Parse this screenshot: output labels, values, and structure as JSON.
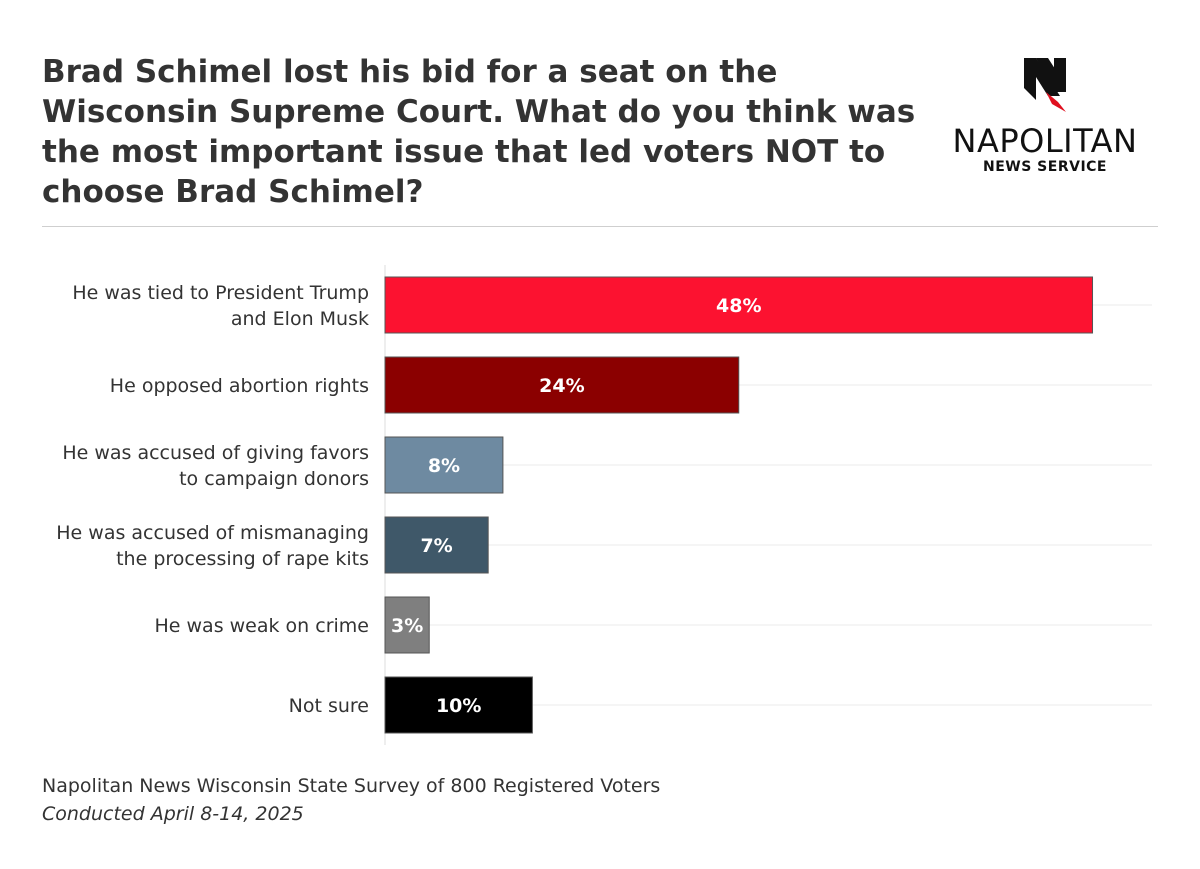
{
  "title": "Brad Schimel lost his bid for a seat on the Wisconsin Supreme Court. What do you think was the most important issue that led voters NOT to choose Brad Schimel?",
  "logo": {
    "brand": "NAPOLITAN",
    "sub": "NEWS SERVICE",
    "colors": {
      "mark": "#111111",
      "accent": "#e0101f"
    }
  },
  "source": {
    "line1": "Napolitan News Wisconsin State Survey of 800 Registered Voters",
    "line2": "Conducted April 8-14, 2025"
  },
  "chart_data": {
    "type": "bar",
    "orientation": "horizontal",
    "title": "Brad Schimel lost his bid for a seat on the Wisconsin Supreme Court. What do you think was the most important issue that led voters NOT to choose Brad Schimel?",
    "categories": [
      [
        "He was tied to President Trump",
        "and Elon Musk"
      ],
      [
        "He opposed abortion rights"
      ],
      [
        "He was accused of giving favors",
        "to campaign donors"
      ],
      [
        "He was accused of mismanaging",
        "the processing of rape kits"
      ],
      [
        "He was weak on crime"
      ],
      [
        "Not sure"
      ]
    ],
    "values": [
      48,
      24,
      8,
      7,
      3,
      10
    ],
    "value_labels": [
      "48%",
      "24%",
      "8%",
      "7%",
      "3%",
      "10%"
    ],
    "colors": [
      "#fc1230",
      "#8b0000",
      "#6e8aa1",
      "#3f5869",
      "#7f7f7f",
      "#000000"
    ],
    "xlim": [
      0,
      50
    ],
    "grid": true,
    "xlabel": "",
    "ylabel": ""
  }
}
